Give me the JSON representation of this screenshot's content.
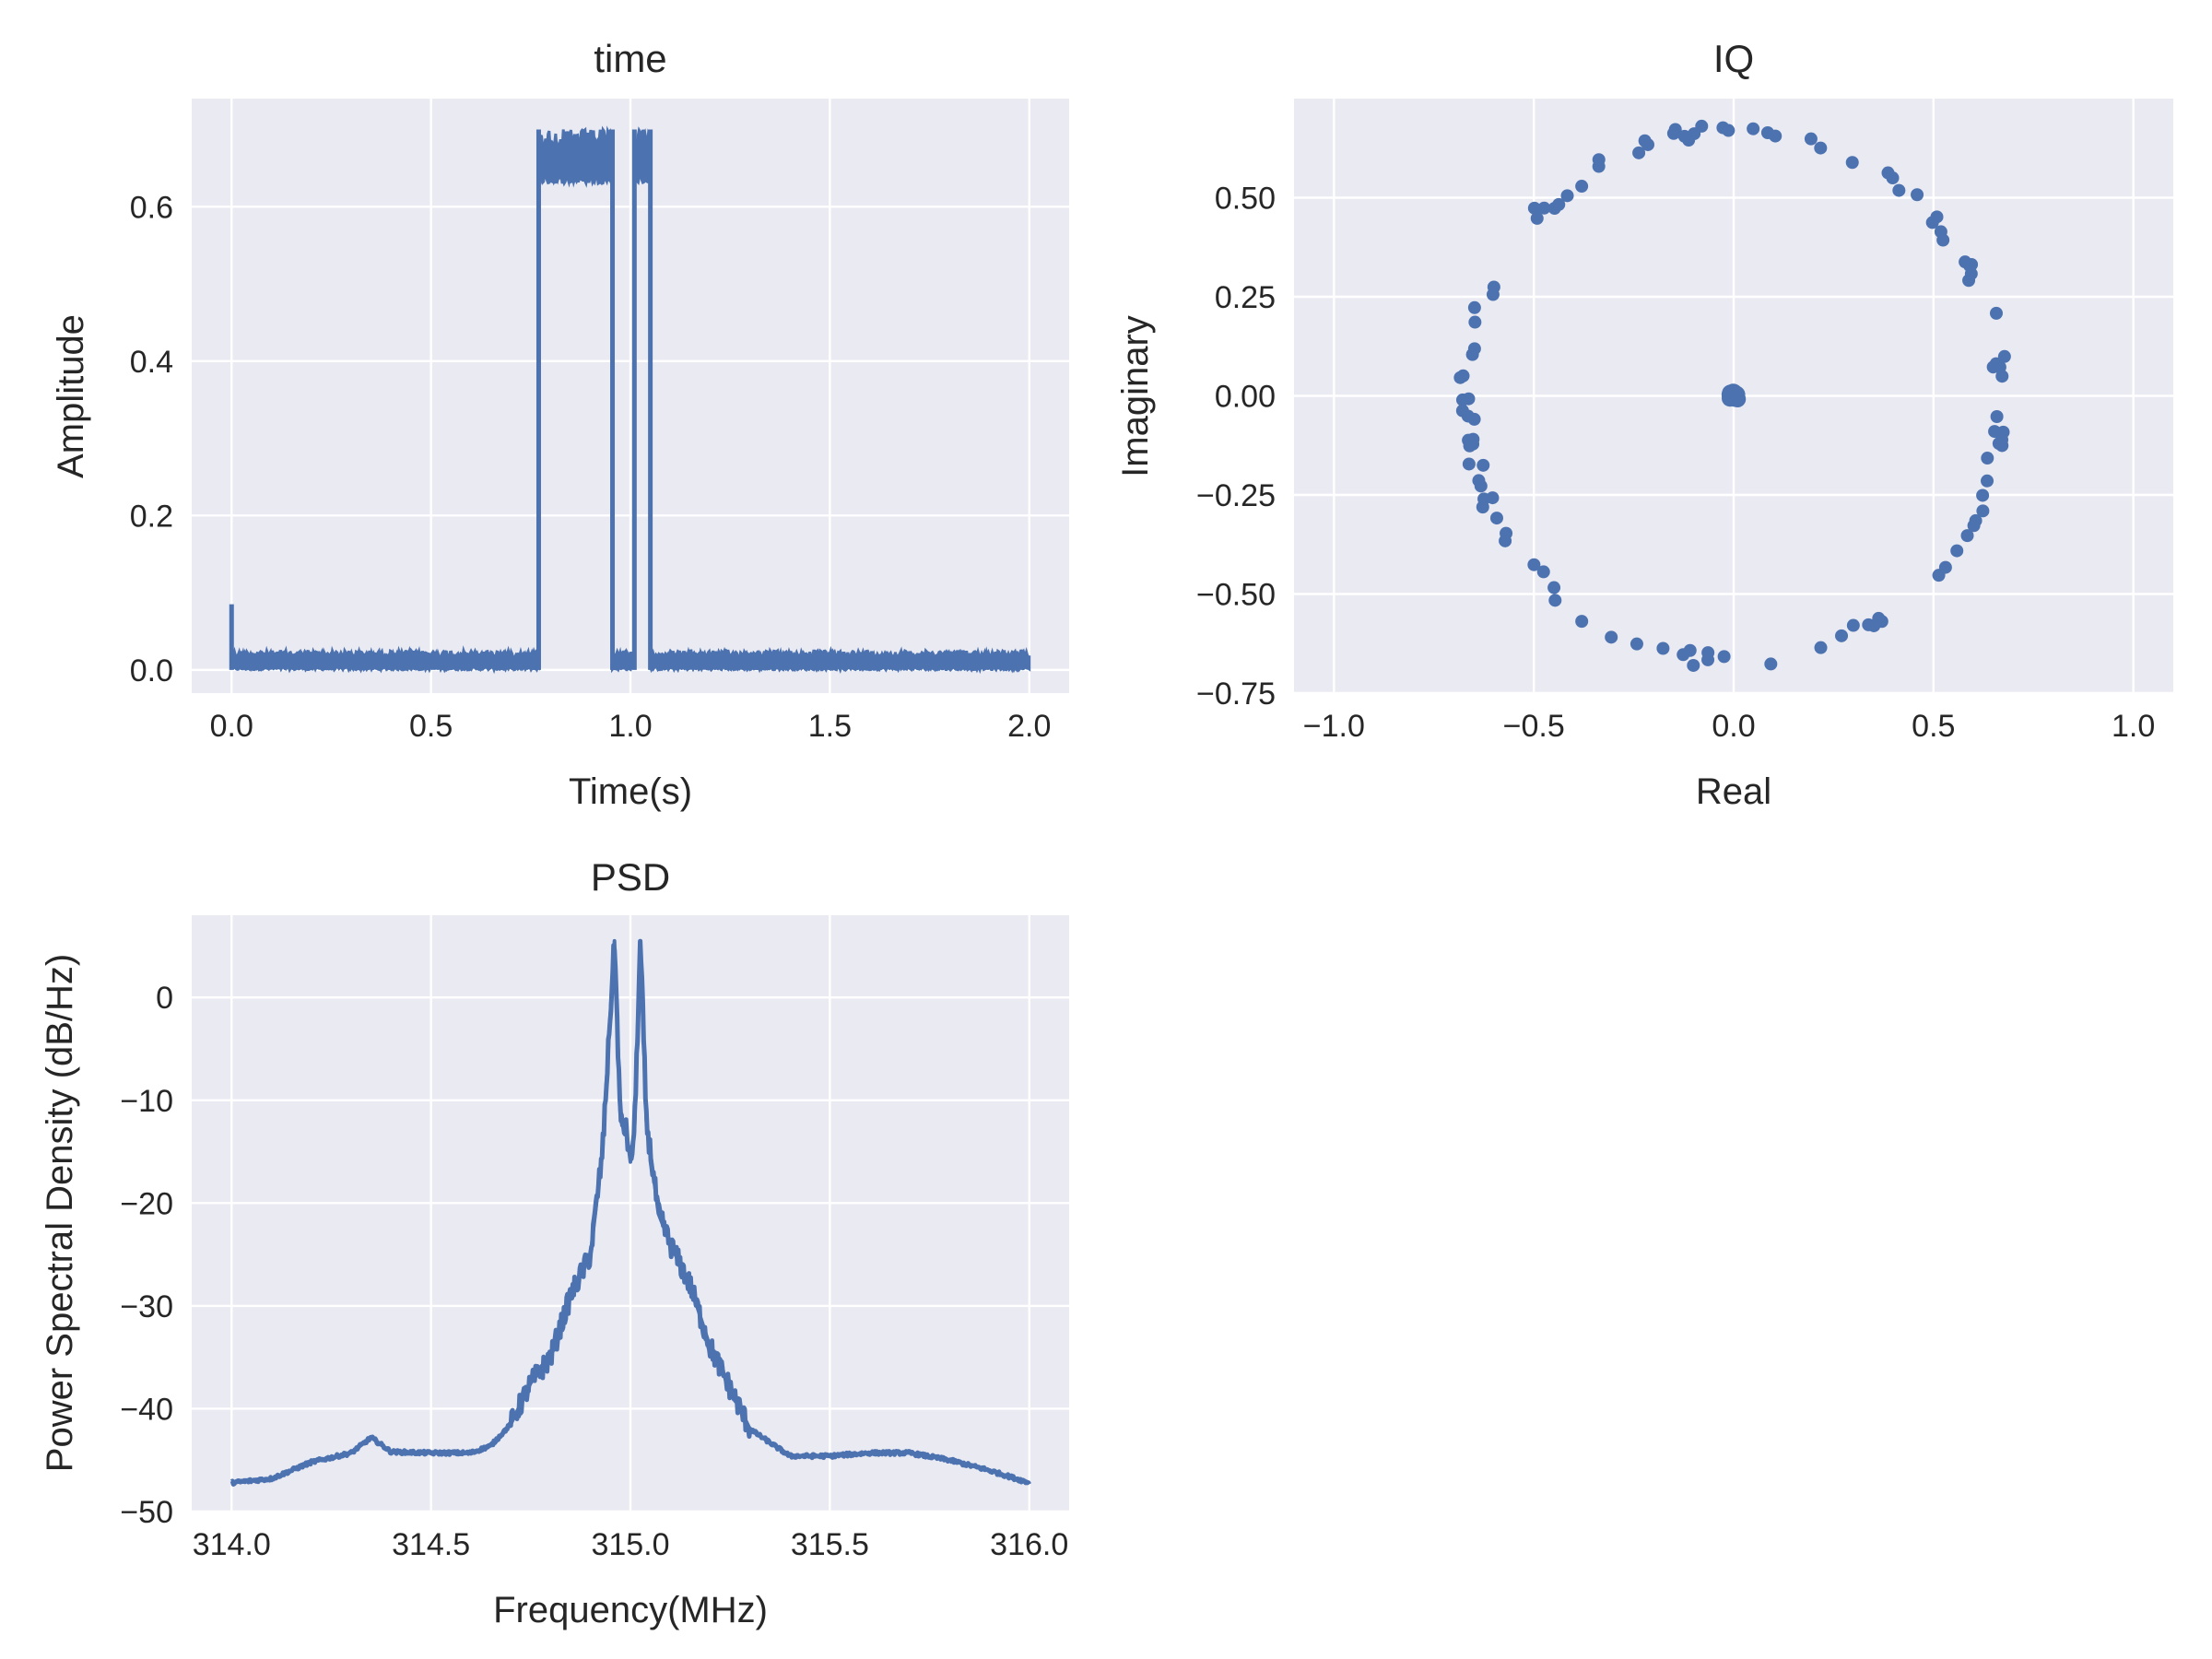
{
  "chart_data": [
    {
      "id": "time",
      "type": "line",
      "title": "time",
      "xlabel": "Time(s)",
      "ylabel": "Amplitude",
      "xlim": [
        -0.1,
        2.1
      ],
      "ylim": [
        -0.03,
        0.74
      ],
      "xticks": [
        0.0,
        0.5,
        1.0,
        1.5,
        2.0
      ],
      "xtick_labels": [
        "0.0",
        "0.5",
        "1.0",
        "1.5",
        "2.0"
      ],
      "yticks": [
        0.0,
        0.2,
        0.4,
        0.6
      ],
      "ytick_labels": [
        "0.0",
        "0.2",
        "0.4",
        "0.6"
      ],
      "grid": true,
      "series": [
        {
          "color": "#4c72b0",
          "segments": [
            {
              "x": [
                0.0,
                0.004,
                0.006,
                0.77
              ],
              "y_low": 0.0,
              "y_high": 0.025,
              "spike": 0.085
            },
            {
              "x": [
                0.77,
                0.955
              ],
              "y_low": 0.63,
              "y_high": 0.7
            },
            {
              "x": [
                0.955,
                1.01
              ],
              "y_low": 0.0,
              "y_high": 0.025
            },
            {
              "x": [
                1.01,
                1.05
              ],
              "y_low": 0.63,
              "y_high": 0.7
            },
            {
              "x": [
                1.05,
                2.0
              ],
              "y_low": 0.0,
              "y_high": 0.025
            }
          ]
        }
      ]
    },
    {
      "id": "iq",
      "type": "scatter",
      "title": "IQ",
      "xlabel": "Real",
      "ylabel": "Imaginary",
      "xlim": [
        -1.1,
        1.1
      ],
      "ylim": [
        -0.75,
        0.75
      ],
      "xticks": [
        -1.0,
        -0.5,
        0.0,
        0.5,
        1.0
      ],
      "xtick_labels": [
        "−1.0",
        "−0.5",
        "0.0",
        "0.5",
        "1.0"
      ],
      "yticks": [
        -0.75,
        -0.5,
        -0.25,
        0.0,
        0.25,
        0.5
      ],
      "ytick_labels": [
        "−0.75",
        "−0.50",
        "−0.25",
        "0.00",
        "0.25",
        "0.50"
      ],
      "grid": true,
      "color": "#4c72b0",
      "ring_radius": 0.67,
      "center_cluster": {
        "x": 0.0,
        "y": 0.0
      }
    },
    {
      "id": "psd",
      "type": "line",
      "title": "PSD",
      "xlabel": "Frequency(MHz)",
      "ylabel": "Power Spectral Density (dB/Hz)",
      "xlim": [
        313.9,
        316.1
      ],
      "ylim": [
        -50,
        8
      ],
      "xticks": [
        314.0,
        314.5,
        315.0,
        315.5,
        316.0
      ],
      "xtick_labels": [
        "314.0",
        "314.5",
        "315.0",
        "315.5",
        "316.0"
      ],
      "yticks": [
        -50,
        -40,
        -30,
        -20,
        -10,
        0
      ],
      "ytick_labels": [
        "−50",
        "−40",
        "−30",
        "−20",
        "−10",
        "0"
      ],
      "grid": true,
      "series": [
        {
          "color": "#4c72b0",
          "x": [
            314.0,
            314.1,
            314.2,
            314.3,
            314.35,
            314.4,
            314.5,
            314.6,
            314.65,
            314.7,
            314.75,
            314.8,
            314.85,
            314.9,
            314.93,
            314.96,
            314.975,
            314.99,
            315.0,
            315.01,
            315.025,
            315.04,
            315.07,
            315.1,
            315.15,
            315.2,
            315.3,
            315.4,
            315.5,
            315.6,
            315.7,
            315.8,
            315.9,
            316.0
          ],
          "y": [
            -47.2,
            -46.8,
            -45.2,
            -44.3,
            -42.8,
            -44.2,
            -44.3,
            -44.3,
            -43.6,
            -41.5,
            -37.5,
            -35.0,
            -29.0,
            -25.0,
            -15.0,
            5.5,
            -12.0,
            -13.0,
            -16.0,
            -13.0,
            5.5,
            -12.0,
            -21.0,
            -24.0,
            -28.0,
            -34.0,
            -42.0,
            -44.6,
            -44.6,
            -44.3,
            -44.3,
            -45.0,
            -46.0,
            -47.2
          ]
        }
      ]
    }
  ]
}
